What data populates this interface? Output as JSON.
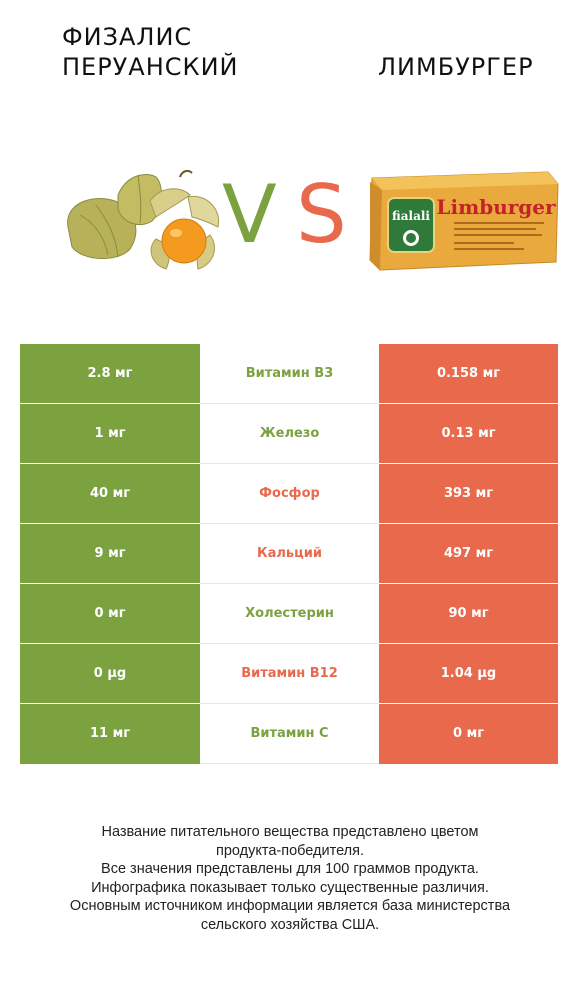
{
  "header": {
    "left_title_line1": "ФИЗАЛИС",
    "left_title_line2": "ПЕРУАНСКИЙ",
    "right_title": "ЛИМБУРГЕР",
    "vs_v": "V",
    "vs_s": "S"
  },
  "images": {
    "left": "physalis-fruit-image",
    "right": "limburger-cheese-package-image",
    "package_brand": "fialali",
    "package_name": "Limburger"
  },
  "colors": {
    "winner_left": "#7ba23f",
    "winner_right": "#e8694b"
  },
  "rows": [
    {
      "left": "2.8 мг",
      "nutrient": "Витамин B3",
      "right": "0.158 мг",
      "winner": "left"
    },
    {
      "left": "1 мг",
      "nutrient": "Железо",
      "right": "0.13 мг",
      "winner": "left"
    },
    {
      "left": "40 мг",
      "nutrient": "Фосфор",
      "right": "393 мг",
      "winner": "right"
    },
    {
      "left": "9 мг",
      "nutrient": "Кальций",
      "right": "497 мг",
      "winner": "right"
    },
    {
      "left": "0 мг",
      "nutrient": "Холестерин",
      "right": "90 мг",
      "winner": "left"
    },
    {
      "left": "0 µg",
      "nutrient": "Витамин B12",
      "right": "1.04 µg",
      "winner": "right"
    },
    {
      "left": "11 мг",
      "nutrient": "Витамин C",
      "right": "0 мг",
      "winner": "left"
    }
  ],
  "footer": {
    "line1": "Название питательного вещества представлено цветом",
    "line2": "продукта-победителя.",
    "line3": "Все значения представлены для 100 граммов продукта.",
    "line4": "Инфографика показывает только существенные различия.",
    "line5": "Основным источником информации является база министерства",
    "line6": "сельского хозяйства США."
  }
}
